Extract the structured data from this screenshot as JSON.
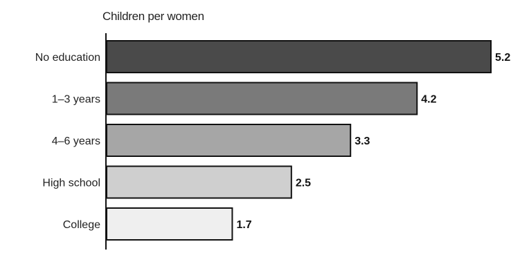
{
  "chart_data": {
    "type": "bar",
    "orientation": "horizontal",
    "title": "Children per women",
    "categories": [
      "No education",
      "1–3 years",
      "4–6 years",
      "High school",
      "College"
    ],
    "values": [
      5.2,
      4.2,
      3.3,
      2.5,
      1.7
    ],
    "value_labels": [
      "5.2",
      "4.2",
      "3.3",
      "2.5",
      "1.7"
    ],
    "bar_colors": [
      "#4a4a4a",
      "#7a7a7a",
      "#a6a6a6",
      "#cfcfcf",
      "#efefef"
    ],
    "xlim": [
      0,
      5.2
    ],
    "grid": false,
    "legend": "none",
    "xlabel": "",
    "ylabel": ""
  }
}
